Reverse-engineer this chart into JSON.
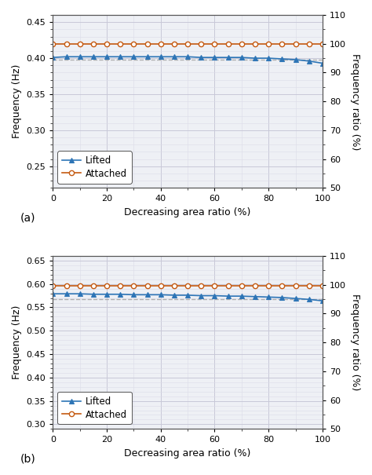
{
  "panel_a": {
    "x": [
      0,
      5,
      10,
      15,
      20,
      25,
      30,
      35,
      40,
      45,
      50,
      55,
      60,
      65,
      70,
      75,
      80,
      85,
      90,
      95,
      100
    ],
    "lifted_freq": [
      0.401,
      0.402,
      0.402,
      0.402,
      0.402,
      0.402,
      0.402,
      0.402,
      0.402,
      0.402,
      0.402,
      0.401,
      0.401,
      0.401,
      0.401,
      0.4,
      0.4,
      0.399,
      0.398,
      0.396,
      0.393
    ],
    "attached_freq": [
      0.42,
      0.42,
      0.42,
      0.42,
      0.42,
      0.42,
      0.42,
      0.42,
      0.42,
      0.42,
      0.42,
      0.42,
      0.42,
      0.42,
      0.42,
      0.42,
      0.42,
      0.42,
      0.42,
      0.42,
      0.42
    ],
    "dashed_line_y": 0.398,
    "ylim": [
      0.22,
      0.46
    ],
    "yticks": [
      0.25,
      0.3,
      0.35,
      0.4,
      0.45
    ],
    "ylabel_left": "Frequency (Hz)",
    "ylabel_right": "Frequency ratio (%)",
    "y2lim": [
      50,
      110
    ],
    "y2ticks": [
      50,
      60,
      70,
      80,
      90,
      100,
      110
    ],
    "xlabel": "Decreasing area ratio (%)",
    "label": "(a)"
  },
  "panel_b": {
    "x": [
      0,
      5,
      10,
      15,
      20,
      25,
      30,
      35,
      40,
      45,
      50,
      55,
      60,
      65,
      70,
      75,
      80,
      85,
      90,
      95,
      100
    ],
    "lifted_freq": [
      0.579,
      0.579,
      0.579,
      0.578,
      0.578,
      0.578,
      0.577,
      0.577,
      0.577,
      0.576,
      0.576,
      0.575,
      0.575,
      0.574,
      0.574,
      0.573,
      0.572,
      0.571,
      0.569,
      0.567,
      0.564
    ],
    "attached_freq": [
      0.596,
      0.596,
      0.596,
      0.596,
      0.596,
      0.596,
      0.596,
      0.596,
      0.596,
      0.596,
      0.596,
      0.596,
      0.596,
      0.596,
      0.596,
      0.596,
      0.596,
      0.596,
      0.596,
      0.596,
      0.596
    ],
    "dashed_line_y": 0.567,
    "ylim": [
      0.29,
      0.66
    ],
    "yticks": [
      0.3,
      0.35,
      0.4,
      0.45,
      0.5,
      0.55,
      0.6,
      0.65
    ],
    "ylabel_left": "Frequency (Hz)",
    "ylabel_right": "Frequency ratio (%)",
    "y2lim": [
      50,
      110
    ],
    "y2ticks": [
      50,
      60,
      70,
      80,
      90,
      100,
      110
    ],
    "xlabel": "Decreasing area ratio (%)",
    "label": "(b)"
  },
  "blue_color": "#2e75b6",
  "orange_color": "#c55a11",
  "dashed_color": "#b0b0b0",
  "grid_major_color": "#c8c8d8",
  "grid_minor_color": "#dcdce8",
  "bg_color": "#eef0f5",
  "legend_lifted": "Lifted",
  "legend_attached": "Attached",
  "xticks": [
    0,
    20,
    40,
    60,
    80,
    100
  ]
}
